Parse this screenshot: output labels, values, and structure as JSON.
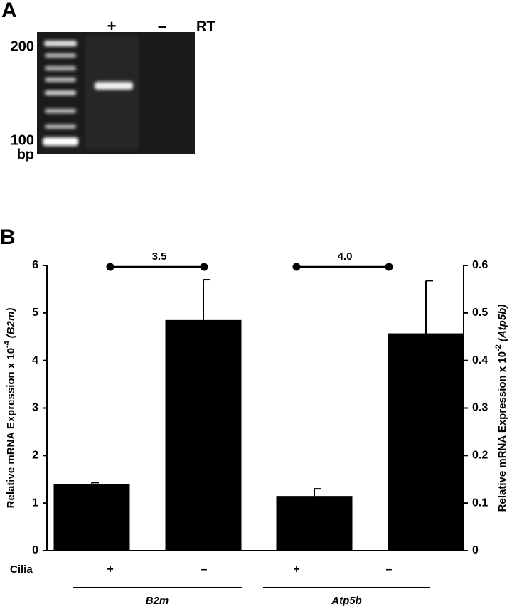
{
  "panel_a": {
    "label": "A",
    "lanes": [
      "+",
      "–"
    ],
    "lane_title": "RT",
    "size_labels": [
      "200",
      "100"
    ],
    "unit": "bp"
  },
  "chart_data": {
    "type": "bar",
    "panel_label": "B",
    "categories": [
      "+",
      "–",
      "+",
      "–"
    ],
    "x_label": "Cilia",
    "ylabel": {
      "text": "Relative mRNA Expression x 10",
      "exponent": "-4",
      "gene": "(B2m)"
    },
    "y2label": {
      "text": "Relative mRNA Expression x 10",
      "exponent": "-2",
      "gene": "(Atp5b)"
    },
    "series": [
      {
        "name": "B2m",
        "color": "#000000",
        "values": [
          1.4,
          4.85,
          null,
          null
        ],
        "errors": [
          0.03,
          0.85,
          null,
          null
        ]
      },
      {
        "name": "Atp5b",
        "color": "#000000",
        "axis": "y2",
        "values": [
          null,
          null,
          0.115,
          0.457
        ],
        "errors": [
          null,
          null,
          0.015,
          0.111
        ]
      }
    ],
    "annotations": [
      "3.5",
      "4.0"
    ],
    "ylim": [
      0,
      6
    ],
    "yticks": [
      0,
      1,
      2,
      3,
      4,
      5,
      6
    ],
    "y2lim": [
      0,
      0.6
    ],
    "y2ticks": [
      0,
      0.1,
      0.2,
      0.3,
      0.4,
      0.5,
      0.6
    ]
  }
}
